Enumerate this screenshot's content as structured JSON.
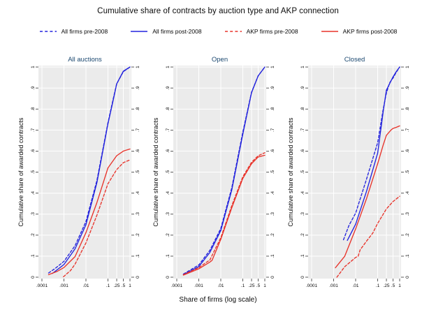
{
  "figure": {
    "title": "Cumulative share of contracts by auction type and AKP connection",
    "xlabel": "Share of firms (log scale)",
    "ylabel": "Cumulative share of awarded contracts"
  },
  "colors": {
    "all_firms": "#2222dd",
    "akp_firms": "#e8332a",
    "panel_title": "#1a476f",
    "panel_bg": "#ebebeb",
    "gridline": "#ffffff",
    "tick": "#333333",
    "text": "#0a0a0a"
  },
  "legend": [
    {
      "label": "All firms pre-2008",
      "color": "#2222dd",
      "dashed": true
    },
    {
      "label": "All firms post-2008",
      "color": "#2222dd",
      "dashed": false
    },
    {
      "label": "AKP firms pre-2008",
      "color": "#e8332a",
      "dashed": true
    },
    {
      "label": "AKP firms post-2008",
      "color": "#e8332a",
      "dashed": false
    }
  ],
  "chart_data": {
    "type": "line",
    "x_scale": "log",
    "xlim": [
      0.0001,
      1.3
    ],
    "ylim": [
      0,
      1
    ],
    "grid": true,
    "legend_position": "top",
    "x_ticks": [
      0.0001,
      0.001,
      0.01,
      0.1,
      0.25,
      0.5,
      1
    ],
    "x_tick_labels": [
      ".0001",
      ".001",
      ".01",
      ".1",
      ".25",
      ".5",
      "1"
    ],
    "y_ticks": [
      0,
      0.1,
      0.2,
      0.3,
      0.4,
      0.5,
      0.6,
      0.7,
      0.8,
      0.9,
      1
    ],
    "y_tick_labels": [
      "0",
      ".1",
      ".2",
      ".3",
      ".4",
      ".5",
      ".6",
      ".7",
      ".8",
      ".9",
      "1"
    ],
    "panels": [
      {
        "title": "All auctions",
        "series": [
          {
            "name": "All firms pre-2008",
            "color": "#2222dd",
            "dashed": true,
            "points": [
              [
                0.0002,
                0.02
              ],
              [
                0.0004,
                0.042
              ],
              [
                0.001,
                0.075
              ],
              [
                0.0032,
                0.15
              ],
              [
                0.01,
                0.265
              ],
              [
                0.0316,
                0.46
              ],
              [
                0.1,
                0.735
              ],
              [
                0.18,
                0.855
              ],
              [
                0.25,
                0.92
              ],
              [
                0.5,
                0.978
              ],
              [
                1,
                1
              ]
            ]
          },
          {
            "name": "All firms post-2008",
            "color": "#2222dd",
            "dashed": false,
            "points": [
              [
                0.0003,
                0.018
              ],
              [
                0.001,
                0.06
              ],
              [
                0.0032,
                0.135
              ],
              [
                0.01,
                0.25
              ],
              [
                0.0316,
                0.45
              ],
              [
                0.1,
                0.73
              ],
              [
                0.18,
                0.85
              ],
              [
                0.25,
                0.92
              ],
              [
                0.5,
                0.98
              ],
              [
                1,
                1
              ]
            ]
          },
          {
            "name": "AKP firms pre-2008",
            "color": "#e8332a",
            "dashed": true,
            "points": [
              [
                0.00095,
                0.002
              ],
              [
                0.002,
                0.032
              ],
              [
                0.0032,
                0.062
              ],
              [
                0.01,
                0.163
              ],
              [
                0.0316,
                0.295
              ],
              [
                0.1,
                0.445
              ],
              [
                0.25,
                0.512
              ],
              [
                0.5,
                0.545
              ],
              [
                1,
                0.558
              ]
            ]
          },
          {
            "name": "AKP firms post-2008",
            "color": "#e8332a",
            "dashed": false,
            "points": [
              [
                0.0002,
                0.012
              ],
              [
                0.0005,
                0.028
              ],
              [
                0.001,
                0.046
              ],
              [
                0.0032,
                0.098
              ],
              [
                0.01,
                0.212
              ],
              [
                0.0316,
                0.355
              ],
              [
                0.1,
                0.52
              ],
              [
                0.25,
                0.578
              ],
              [
                0.5,
                0.6
              ],
              [
                1,
                0.61
              ]
            ]
          }
        ]
      },
      {
        "title": "Open",
        "series": [
          {
            "name": "All firms pre-2008",
            "color": "#2222dd",
            "dashed": true,
            "points": [
              [
                0.0002,
                0.015
              ],
              [
                0.001,
                0.058
              ],
              [
                0.0032,
                0.128
              ],
              [
                0.01,
                0.232
              ],
              [
                0.0316,
                0.425
              ],
              [
                0.1,
                0.69
              ],
              [
                0.25,
                0.88
              ],
              [
                0.5,
                0.958
              ],
              [
                1,
                1
              ]
            ]
          },
          {
            "name": "All firms post-2008",
            "color": "#2222dd",
            "dashed": false,
            "points": [
              [
                0.0002,
                0.012
              ],
              [
                0.001,
                0.05
              ],
              [
                0.0032,
                0.118
              ],
              [
                0.01,
                0.222
              ],
              [
                0.0316,
                0.415
              ],
              [
                0.1,
                0.68
              ],
              [
                0.25,
                0.878
              ],
              [
                0.5,
                0.958
              ],
              [
                1,
                1
              ]
            ]
          },
          {
            "name": "AKP firms pre-2008",
            "color": "#e8332a",
            "dashed": true,
            "points": [
              [
                0.0002,
                0.012
              ],
              [
                0.001,
                0.046
              ],
              [
                0.0032,
                0.082
              ],
              [
                0.01,
                0.188
              ],
              [
                0.0316,
                0.34
              ],
              [
                0.1,
                0.478
              ],
              [
                0.25,
                0.547
              ],
              [
                0.5,
                0.578
              ],
              [
                1,
                0.592
              ]
            ]
          },
          {
            "name": "AKP firms post-2008",
            "color": "#e8332a",
            "dashed": false,
            "points": [
              [
                0.0002,
                0.01
              ],
              [
                0.001,
                0.04
              ],
              [
                0.0032,
                0.072
              ],
              [
                0.004,
                0.08
              ],
              [
                0.01,
                0.18
              ],
              [
                0.0316,
                0.33
              ],
              [
                0.1,
                0.47
              ],
              [
                0.25,
                0.54
              ],
              [
                0.5,
                0.572
              ],
              [
                1,
                0.58
              ]
            ]
          }
        ]
      },
      {
        "title": "Closed",
        "series": [
          {
            "name": "All firms pre-2008",
            "color": "#2222dd",
            "dashed": true,
            "points": [
              [
                0.0028,
                0.178
              ],
              [
                0.005,
                0.247
              ],
              [
                0.01,
                0.305
              ],
              [
                0.0316,
                0.468
              ],
              [
                0.1,
                0.64
              ],
              [
                0.18,
                0.8
              ],
              [
                0.25,
                0.876
              ],
              [
                0.35,
                0.925
              ],
              [
                0.5,
                0.948
              ],
              [
                0.7,
                0.975
              ],
              [
                1,
                1
              ]
            ]
          },
          {
            "name": "All firms post-2008",
            "color": "#2222dd",
            "dashed": false,
            "points": [
              [
                0.0042,
                0.175
              ],
              [
                0.01,
                0.252
              ],
              [
                0.0316,
                0.41
              ],
              [
                0.1,
                0.59
              ],
              [
                0.18,
                0.79
              ],
              [
                0.25,
                0.89
              ],
              [
                0.5,
                0.953
              ],
              [
                0.7,
                0.978
              ],
              [
                1,
                1
              ]
            ]
          },
          {
            "name": "AKP firms pre-2008",
            "color": "#e8332a",
            "dashed": true,
            "points": [
              [
                0.0014,
                0.0
              ],
              [
                0.0032,
                0.05
              ],
              [
                0.01,
                0.094
              ],
              [
                0.013,
                0.1
              ],
              [
                0.016,
                0.13
              ],
              [
                0.0316,
                0.172
              ],
              [
                0.06,
                0.21
              ],
              [
                0.1,
                0.256
              ],
              [
                0.18,
                0.3
              ],
              [
                0.25,
                0.325
              ],
              [
                0.5,
                0.36
              ],
              [
                1,
                0.385
              ]
            ]
          },
          {
            "name": "AKP firms post-2008",
            "color": "#e8332a",
            "dashed": false,
            "points": [
              [
                0.0012,
                0.045
              ],
              [
                0.0032,
                0.1
              ],
              [
                0.01,
                0.23
              ],
              [
                0.0316,
                0.375
              ],
              [
                0.1,
                0.54
              ],
              [
                0.18,
                0.63
              ],
              [
                0.25,
                0.675
              ],
              [
                0.4,
                0.7
              ],
              [
                0.5,
                0.708
              ],
              [
                0.7,
                0.713
              ],
              [
                1,
                0.72
              ]
            ]
          }
        ]
      }
    ]
  }
}
